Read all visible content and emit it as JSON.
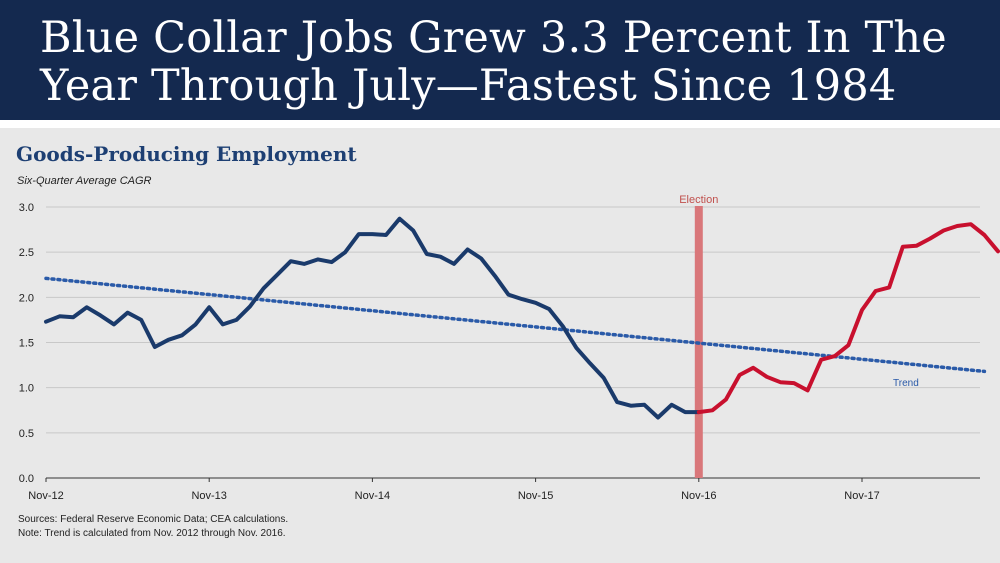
{
  "headline": "Blue Collar Jobs Grew 3.3 Percent In The Year Through July—Fastest Since 1984",
  "colors": {
    "banner": "#14294f",
    "pre_election": "#1a3a6b",
    "post_election": "#c8102e",
    "trend": "#2a5aa8",
    "election_line": "#d9777a",
    "gridline": "#c8c8c8"
  },
  "chart_data": {
    "type": "line",
    "title": "Goods-Producing Employment",
    "subtitle": "Six-Quarter Average CAGR",
    "ylim": [
      0,
      3.0
    ],
    "y_ticks": [
      "0.0",
      "0.5",
      "1.0",
      "1.5",
      "2.0",
      "2.5",
      "3.0"
    ],
    "x_ticks": [
      {
        "label": "Nov-12",
        "index": 0
      },
      {
        "label": "Nov-13",
        "index": 12
      },
      {
        "label": "Nov-14",
        "index": 24
      },
      {
        "label": "Nov-15",
        "index": 36
      },
      {
        "label": "Nov-16",
        "index": 48
      },
      {
        "label": "Nov-17",
        "index": 60
      }
    ],
    "x_max_index": 68.5,
    "grid": true,
    "series": [
      {
        "name": "Before election",
        "color_key": "pre_election",
        "start_index": 0,
        "values": [
          1.73,
          1.79,
          1.78,
          1.89,
          1.8,
          1.7,
          1.83,
          1.75,
          1.45,
          1.53,
          1.58,
          1.7,
          1.89,
          1.7,
          1.75,
          1.9,
          2.1,
          2.25,
          2.4,
          2.37,
          2.42,
          2.39,
          2.5,
          2.7,
          2.7,
          2.69,
          2.87,
          2.74,
          2.48,
          2.45,
          2.37,
          2.53,
          2.43,
          2.24,
          2.03,
          1.98,
          1.94,
          1.87,
          1.68,
          1.44,
          1.27,
          1.11,
          0.84,
          0.8,
          0.81,
          0.67,
          0.81,
          0.73,
          0.73
        ]
      },
      {
        "name": "After election",
        "color_key": "post_election",
        "start_index": 48,
        "values": [
          0.73,
          0.75,
          0.87,
          1.14,
          1.22,
          1.12,
          1.06,
          1.05,
          0.97,
          1.31,
          1.35,
          1.47,
          1.86,
          2.07,
          2.11,
          2.56,
          2.57,
          2.65,
          2.74,
          2.79,
          2.81,
          2.69,
          2.51
        ]
      }
    ],
    "trend": {
      "name": "Trend",
      "label": "Trend",
      "start_index": 0,
      "start_value": 2.21,
      "end_index": 69,
      "end_value": 1.18
    },
    "event": {
      "label": "Election",
      "index": 48
    }
  },
  "footnotes": {
    "sources": "Sources: Federal Reserve Economic Data; CEA calculations.",
    "note": "Note: Trend is calculated from Nov. 2012 through Nov. 2016."
  }
}
